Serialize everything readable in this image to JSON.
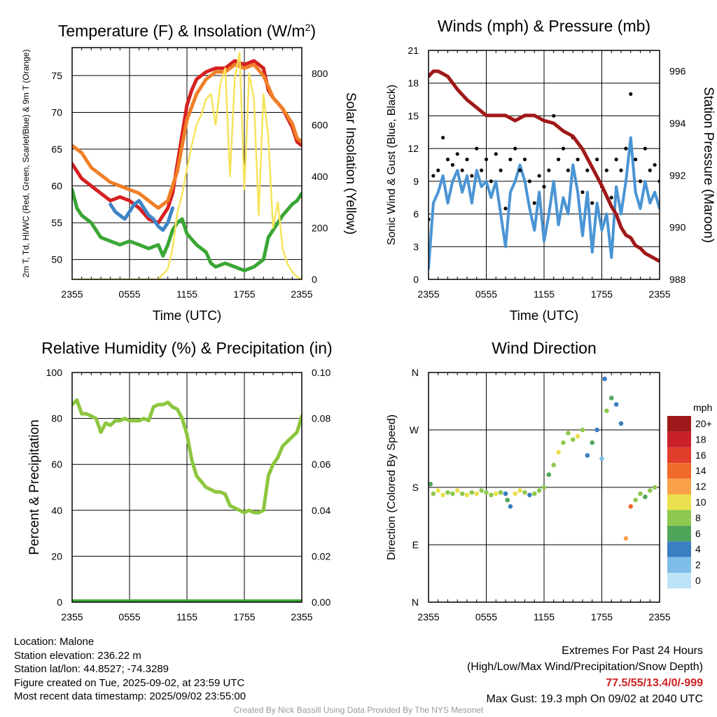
{
  "colors": {
    "red": "#d62020",
    "green": "#3aa635",
    "scarlet_blue": "#3d85c6",
    "orange": "#f07f27",
    "yellow": "#f7e35a",
    "sonic_wind": "#4a94d4",
    "gust": "#000000",
    "pressure": "#a01818",
    "rh": "#8cc63e",
    "precip": "#40a836"
  },
  "chart_data": [
    {
      "id": "temperature",
      "type": "line",
      "title": "Temperature (F) & Insolation (W/m²)",
      "xlabel": "Time (UTC)",
      "ylabel": "2m T, Td, HI/WC (Red, Green, Scarlet/Blue) & 9m T (Orange)",
      "y2label": "Solar Insolation (Yellow)",
      "x_ticks": [
        "2355",
        "0555",
        "1155",
        "1755",
        "2355"
      ],
      "y_ticks": [
        50,
        55,
        60,
        65,
        70,
        75
      ],
      "y2_ticks": [
        0,
        200,
        400,
        600,
        800
      ],
      "ylim": [
        47.3,
        78.8
      ],
      "y2lim": [
        0,
        900
      ],
      "grid": true,
      "series": [
        {
          "name": "2m T",
          "color_key": "red",
          "axis": "left",
          "x": [
            0,
            0.5,
            1,
            2,
            3,
            4,
            5,
            6,
            7,
            8,
            9,
            10,
            10.5,
            11,
            11.5,
            12,
            12.5,
            13,
            14,
            15,
            16,
            17,
            18,
            19,
            20,
            20.5,
            21,
            22,
            23,
            23.5,
            24
          ],
          "y": [
            63,
            62,
            61,
            60,
            59,
            58,
            58.5,
            58,
            57,
            55.5,
            55,
            57,
            59,
            63,
            67,
            71,
            73,
            74.5,
            75.5,
            76,
            76,
            77,
            76.5,
            77,
            76,
            73,
            72,
            70.5,
            68,
            66,
            65.5
          ]
        },
        {
          "name": "2m Td",
          "color_key": "green",
          "axis": "left",
          "x": [
            0,
            0.5,
            1,
            2,
            3,
            4,
            5,
            6,
            7,
            8,
            9,
            9.5,
            10,
            10.5,
            11,
            11.5,
            12,
            13,
            14,
            14.5,
            15,
            16,
            17,
            18,
            19,
            20,
            20.5,
            21,
            22,
            23,
            23.5,
            24
          ],
          "y": [
            59.5,
            57,
            56,
            55,
            53,
            52.5,
            52,
            52.5,
            52,
            51.5,
            52,
            50.5,
            52,
            54,
            55,
            55.5,
            53.5,
            52,
            51,
            49.5,
            49,
            49.5,
            49,
            48.5,
            49,
            50,
            53,
            54,
            56,
            57.5,
            58,
            59
          ]
        },
        {
          "name": "HI/WC",
          "color_key": "scarlet_blue",
          "axis": "left",
          "x": [
            4,
            4.5,
            5,
            5.5,
            6,
            6.5,
            7,
            8,
            8.5,
            9,
            9.5,
            10,
            10.5
          ],
          "y": [
            57.5,
            56.5,
            56,
            55.5,
            56.5,
            57.5,
            58,
            56,
            55.5,
            54.5,
            54,
            55,
            57
          ]
        },
        {
          "name": "9m T",
          "color_key": "orange",
          "axis": "left",
          "x": [
            0,
            1,
            2,
            3,
            4,
            5,
            6,
            7,
            8,
            9,
            10,
            11,
            12,
            13,
            14,
            15,
            16,
            17,
            18,
            19,
            20,
            21,
            22,
            23,
            23.5,
            24
          ],
          "y": [
            65.5,
            64.5,
            62.5,
            61.5,
            60.5,
            60,
            59.5,
            59,
            58,
            57,
            58,
            62,
            69,
            72.5,
            74.5,
            75.5,
            75.5,
            76.5,
            76,
            76.5,
            75,
            72,
            70.5,
            68.5,
            66.5,
            66
          ]
        },
        {
          "name": "Solar Insolation",
          "color_key": "yellow",
          "axis": "right",
          "x": [
            0,
            9,
            10,
            10.5,
            11,
            11.5,
            12,
            12.5,
            13,
            13.5,
            14,
            14.5,
            15,
            15.5,
            16,
            16.5,
            17,
            17.5,
            18,
            18.5,
            19,
            19.5,
            20,
            20.5,
            21,
            21.5,
            22,
            22.5,
            23,
            23.5,
            24
          ],
          "y": [
            0,
            0,
            40,
            120,
            260,
            330,
            430,
            520,
            600,
            640,
            700,
            720,
            600,
            760,
            820,
            400,
            780,
            880,
            350,
            800,
            700,
            250,
            720,
            550,
            200,
            300,
            120,
            60,
            30,
            10,
            0
          ]
        }
      ]
    },
    {
      "id": "winds",
      "type": "line",
      "title": "Winds (mph) & Pressure (mb)",
      "xlabel": "Time (UTC)",
      "ylabel": "Sonic Wind & Gust (Blue, Black)",
      "y2label": "Station Pressure (Maroon)",
      "x_ticks": [
        "2355",
        "0555",
        "1155",
        "1755",
        "2355"
      ],
      "y_ticks": [
        0,
        3,
        6,
        9,
        12,
        15,
        18,
        21
      ],
      "y2_ticks": [
        988,
        990,
        992,
        994,
        996
      ],
      "ylim": [
        0,
        21
      ],
      "y2lim": [
        988,
        996.8
      ],
      "grid": true,
      "series": [
        {
          "name": "Sonic Wind",
          "color_key": "sonic_wind",
          "axis": "left",
          "x": [
            0,
            0.5,
            1,
            1.5,
            2,
            2.5,
            3,
            3.5,
            4,
            4.5,
            5,
            5.5,
            6,
            6.5,
            7,
            7.5,
            8,
            8.5,
            9,
            9.5,
            10,
            10.5,
            11,
            11.5,
            12,
            12.5,
            13,
            13.5,
            14,
            14.5,
            15,
            15.5,
            16,
            16.5,
            17,
            17.5,
            18,
            18.5,
            19,
            19.5,
            20,
            20.5,
            21,
            21.5,
            22,
            22.5,
            23,
            23.5,
            24
          ],
          "y": [
            1,
            7,
            8,
            9.5,
            7,
            9,
            10,
            8,
            9.5,
            7,
            10,
            8.5,
            9,
            7.5,
            9,
            6,
            3,
            8,
            9,
            10.5,
            9,
            6.5,
            4.5,
            8,
            3.5,
            6,
            9,
            5,
            7.5,
            6,
            10.5,
            8,
            4,
            8,
            2.5,
            7,
            4.5,
            6,
            2,
            8.5,
            6,
            9,
            13,
            8,
            6.5,
            9,
            7,
            8,
            6.5
          ]
        },
        {
          "name": "Gust",
          "color_key": "gust",
          "axis": "left",
          "x": [
            0,
            0.5,
            1,
            1.5,
            2,
            2.5,
            3,
            3.5,
            4,
            4.5,
            5,
            5.5,
            6,
            6.5,
            7,
            7.5,
            8,
            8.5,
            9,
            9.5,
            10,
            10.5,
            11,
            11.5,
            12,
            12.5,
            13,
            13.5,
            14,
            14.5,
            15,
            15.5,
            16,
            16.5,
            17,
            17.5,
            18,
            18.5,
            19,
            19.5,
            20,
            20.5,
            21,
            21.5,
            22,
            22.5,
            23,
            23.5,
            24
          ],
          "y": [
            5.5,
            9.5,
            10,
            13,
            11,
            10.5,
            11.5,
            10,
            11,
            9.5,
            12,
            10,
            11,
            9,
            11.5,
            10,
            6.5,
            11,
            12,
            10,
            11,
            9,
            7,
            9.5,
            8.5,
            10,
            15,
            11,
            12,
            10,
            13,
            11,
            8,
            10,
            7,
            11,
            8.5,
            10,
            7.5,
            11,
            10,
            12,
            17,
            11,
            9,
            12,
            10,
            10.5,
            9
          ]
        },
        {
          "name": "Station Pressure",
          "color_key": "pressure",
          "axis": "right",
          "x": [
            0,
            0.5,
            1,
            2,
            3,
            4,
            5,
            6,
            7,
            8,
            9,
            10,
            11,
            12,
            13,
            14,
            15,
            16,
            17,
            18,
            19,
            19.5,
            20,
            20.5,
            21,
            21.5,
            22,
            22.5,
            23,
            23.5,
            24
          ],
          "y": [
            995.8,
            996.0,
            996.0,
            995.8,
            995.3,
            994.9,
            994.6,
            994.3,
            994.3,
            994.3,
            994.1,
            994.3,
            994.3,
            994.1,
            994.0,
            993.7,
            993.5,
            993.0,
            992.3,
            991.6,
            990.8,
            990.5,
            990.0,
            989.7,
            989.6,
            989.3,
            989.2,
            989.0,
            988.9,
            988.8,
            988.7
          ]
        }
      ]
    },
    {
      "id": "humidity",
      "type": "line",
      "title": "Relative Humidity (%) & Precipitation (in)",
      "xlabel": "",
      "ylabel": "Percent & Precipitation",
      "x_ticks": [
        "2355",
        "0555",
        "1155",
        "1755",
        "2355"
      ],
      "y_ticks": [
        0,
        20,
        40,
        60,
        80,
        100
      ],
      "y2_ticks": [
        "0.00",
        "0.02",
        "0.04",
        "0.06",
        "0.08",
        "0.10"
      ],
      "ylim": [
        0,
        100
      ],
      "y2lim": [
        0,
        0.1
      ],
      "grid": true,
      "series": [
        {
          "name": "Relative Humidity",
          "color_key": "rh",
          "axis": "left",
          "x": [
            0,
            0.5,
            1,
            1.5,
            2,
            2.5,
            3,
            3.5,
            4,
            4.5,
            5,
            5.5,
            6,
            6.5,
            7,
            7.5,
            8,
            8.5,
            9,
            9.5,
            10,
            10.5,
            11,
            11.5,
            12,
            12.5,
            13,
            14,
            14.5,
            15,
            15.5,
            16,
            16.5,
            17,
            17.5,
            18,
            18.5,
            19,
            19.5,
            20,
            20.5,
            21,
            21.5,
            22,
            22.5,
            23,
            23.5,
            24
          ],
          "y": [
            86,
            88,
            82,
            82,
            81,
            80,
            74,
            78,
            77,
            79,
            79,
            80,
            79,
            79,
            79,
            80,
            79,
            85,
            86,
            86,
            87,
            85,
            84,
            80,
            73,
            62,
            55,
            50,
            49,
            48,
            48,
            47,
            42,
            41,
            40,
            39,
            40,
            39,
            39,
            40,
            55,
            60,
            63,
            68,
            70,
            72,
            74,
            81
          ]
        },
        {
          "name": "Precipitation",
          "color_key": "precip",
          "axis": "right",
          "x": [
            0,
            24
          ],
          "y": [
            0,
            0
          ]
        }
      ]
    },
    {
      "id": "wind-direction",
      "type": "scatter",
      "title": "Wind Direction",
      "xlabel": "",
      "ylabel": "Direction (Colored By Speed)",
      "x_ticks": [
        "2355",
        "0555",
        "1155",
        "1755",
        "2355"
      ],
      "y_ticks": [
        "N",
        "E",
        "S",
        "W",
        "N"
      ],
      "ylim": [
        0,
        360
      ],
      "grid": true,
      "colorbar": {
        "label": "mph",
        "ticks": [
          "20+",
          "18",
          "16",
          "14",
          "12",
          "10",
          "8",
          "6",
          "4",
          "2",
          "0"
        ],
        "colors": [
          "#9e1a1a",
          "#c9202a",
          "#e23c2a",
          "#f06a2a",
          "#f9a24a",
          "#ebe04f",
          "#8fc850",
          "#4fa65a",
          "#3a7fc0",
          "#7ebde8",
          "#bde3f7"
        ]
      },
      "points": {
        "x": [
          0.2,
          0.5,
          1,
          1.5,
          2,
          2.5,
          3,
          3.5,
          4,
          4.5,
          5,
          5.5,
          6,
          6.5,
          7,
          7.5,
          8,
          8.2,
          8.5,
          9,
          9.5,
          10,
          10.5,
          11,
          11.5,
          12,
          12.5,
          13,
          13.5,
          14,
          14.5,
          15,
          15.5,
          16,
          16.5,
          17,
          17.5,
          18,
          18.3,
          18.5,
          19,
          19.5,
          20,
          20.5,
          21,
          21.5,
          22,
          22.5,
          23,
          23.5
        ],
        "y": [
          185,
          170,
          175,
          168,
          172,
          170,
          175,
          170,
          168,
          172,
          170,
          175,
          172,
          168,
          170,
          172,
          170,
          160,
          150,
          170,
          175,
          172,
          168,
          170,
          175,
          180,
          200,
          215,
          235,
          250,
          265,
          255,
          260,
          270,
          230,
          250,
          270,
          225,
          350,
          300,
          320,
          310,
          280,
          100,
          150,
          160,
          170,
          165,
          175,
          180
        ],
        "speed": [
          6,
          8,
          9,
          10,
          8,
          7,
          10,
          8,
          9,
          7,
          10,
          8,
          8,
          7,
          9,
          8,
          3,
          5,
          4,
          9,
          10,
          8,
          4,
          7,
          8,
          7,
          6,
          8,
          9,
          7,
          8,
          8,
          9,
          8,
          4,
          6,
          3,
          2,
          4,
          8,
          5,
          3,
          4,
          12,
          13,
          8,
          7,
          6,
          7,
          8
        ]
      }
    }
  ],
  "info": {
    "location": "Location: Malone",
    "elevation": "Station elevation: 236.22 m",
    "latlon": "Station lat/lon: 44.8527; -74.3289",
    "created": "Figure created on Tue, 2025-09-02, at 23:59 UTC",
    "recent": "Most recent data timestamp: 2025/09/02 23:55:00"
  },
  "extremes": {
    "title": "Extremes For Past 24 Hours",
    "subtitle": "(High/Low/Max Wind/Precipitation/Snow Depth)",
    "values": "77.5/55/13.4/0/-999",
    "gust": "Max Gust: 19.3 mph On 09/02 at 2040 UTC"
  },
  "credit": "Created By Nick Bassill Using Data Provided By The NYS Mesonet"
}
